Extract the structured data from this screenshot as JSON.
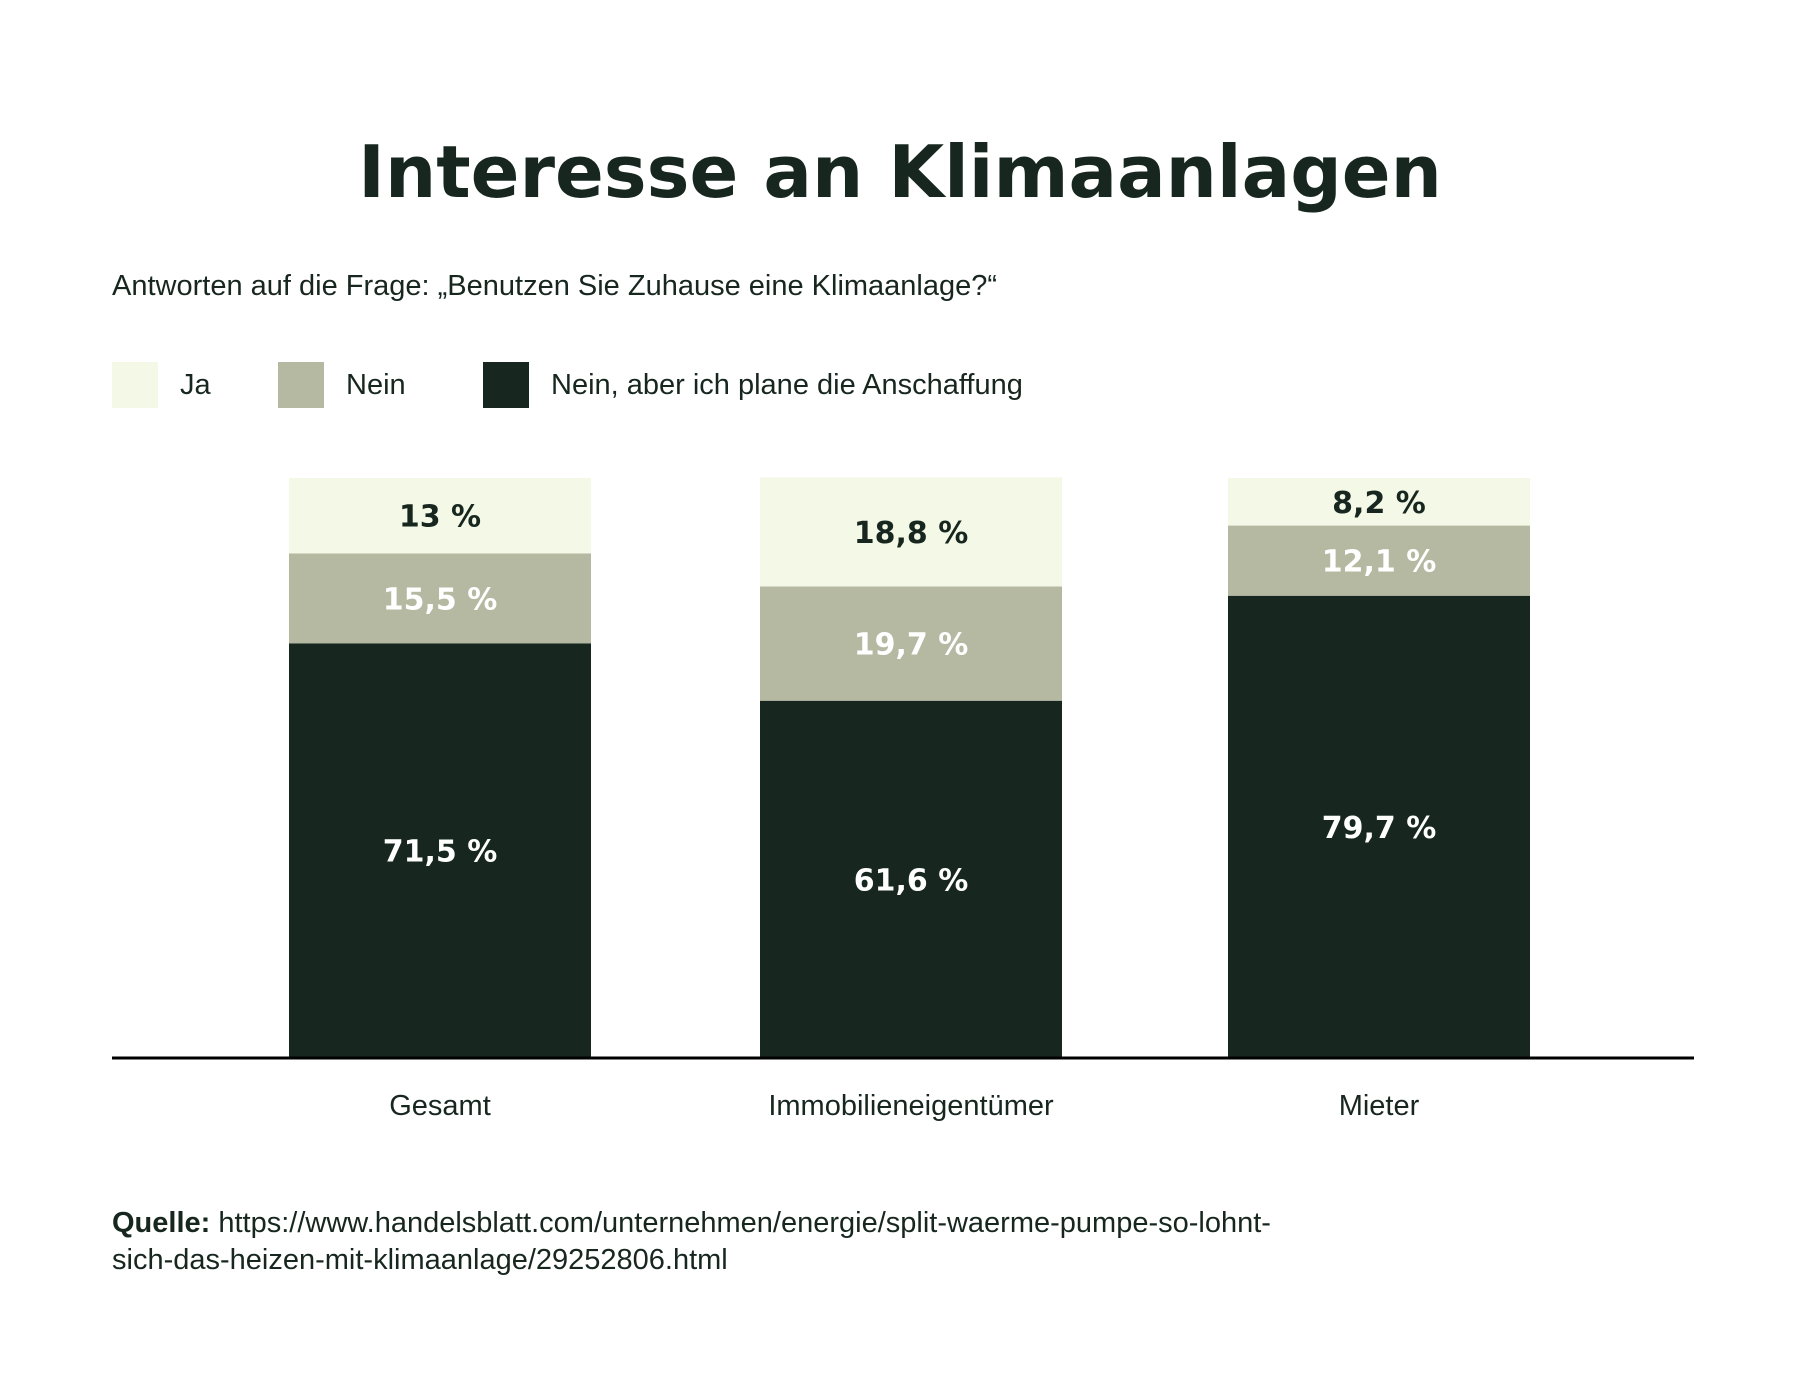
{
  "title": "Interesse an Klimaanlagen",
  "subtitle": "Antworten auf die Frage: „Benutzen Sie Zuhause eine Klimaanlage?“",
  "legend": [
    {
      "label": "Ja",
      "color": "#f4f8e6"
    },
    {
      "label": "Nein",
      "color": "#b5b9a2"
    },
    {
      "label": "Nein, aber ich plane die Anschaffung",
      "color": "#17271f"
    }
  ],
  "source": {
    "label": "Quelle:",
    "text": "https://www.handelsblatt.com/unternehmen/energie/split-waerme-pumpe-so-lohnt-sich-das-heizen-mit-klimaanlage/29252806.html"
  },
  "chart_data": {
    "type": "bar",
    "stacked": true,
    "orientation": "vertical",
    "title": "Interesse an Klimaanlagen",
    "subtitle": "Antworten auf die Frage: „Benutzen Sie Zuhause eine Klimaanlage?“",
    "categories": [
      "Gesamt",
      "Immobilieneigentümer",
      "Mieter"
    ],
    "series": [
      {
        "name": "Nein, aber ich plane die Anschaffung",
        "color": "#17271f",
        "label_color": "#ffffff",
        "values": [
          71.5,
          61.6,
          79.7
        ],
        "labels": [
          "71,5 %",
          "61,6 %",
          "79,7 %"
        ]
      },
      {
        "name": "Nein",
        "color": "#b5b9a2",
        "label_color": "#ffffff",
        "values": [
          15.5,
          19.7,
          12.1
        ],
        "labels": [
          "15,5 %",
          "19,7  %",
          "12,1 %"
        ]
      },
      {
        "name": "Ja",
        "color": "#f4f8e6",
        "label_color": "#17271f",
        "values": [
          13,
          18.8,
          8.2
        ],
        "labels": [
          "13 %",
          "18,8 %",
          "8,2 %"
        ]
      }
    ],
    "ylim": [
      0,
      100
    ],
    "xlabel": "",
    "ylabel": "",
    "grid": false,
    "legend_position": "top-left"
  }
}
